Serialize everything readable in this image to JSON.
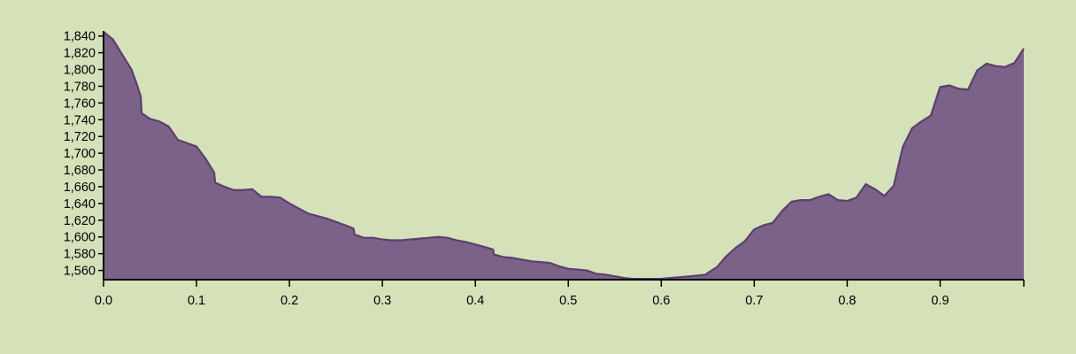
{
  "chart_data": {
    "type": "area",
    "title": "",
    "xlabel": "",
    "ylabel": "",
    "xlim": [
      0,
      0.99
    ],
    "ylim": [
      1549,
      1846
    ],
    "grid": false,
    "x_ticks": [
      "0.0",
      "0.1",
      "0.2",
      "0.3",
      "0.4",
      "0.5",
      "0.6",
      "0.7",
      "0.8",
      "0.9"
    ],
    "y_ticks": [
      "1,560",
      "1,580",
      "1,600",
      "1,620",
      "1,640",
      "1,660",
      "1,680",
      "1,700",
      "1,720",
      "1,740",
      "1,760",
      "1,780",
      "1,800",
      "1,820",
      "1,840"
    ],
    "series": [
      {
        "fill": "#7b6288",
        "stroke": "#5d3f6e",
        "x": [
          0.0,
          0.01,
          0.02,
          0.03,
          0.035,
          0.04,
          0.041,
          0.05,
          0.06,
          0.07,
          0.08,
          0.09,
          0.1,
          0.11,
          0.119,
          0.12,
          0.13,
          0.14,
          0.15,
          0.16,
          0.17,
          0.18,
          0.19,
          0.2,
          0.21,
          0.22,
          0.23,
          0.24,
          0.25,
          0.26,
          0.269,
          0.27,
          0.28,
          0.29,
          0.3,
          0.31,
          0.32,
          0.33,
          0.34,
          0.35,
          0.36,
          0.37,
          0.38,
          0.39,
          0.4,
          0.41,
          0.419,
          0.42,
          0.43,
          0.44,
          0.45,
          0.46,
          0.47,
          0.48,
          0.49,
          0.5,
          0.51,
          0.52,
          0.53,
          0.54,
          0.55,
          0.56,
          0.57,
          0.58,
          0.59,
          0.6,
          0.61,
          0.62,
          0.63,
          0.64,
          0.648,
          0.65,
          0.66,
          0.67,
          0.68,
          0.69,
          0.7,
          0.71,
          0.72,
          0.73,
          0.74,
          0.75,
          0.76,
          0.77,
          0.78,
          0.79,
          0.8,
          0.81,
          0.82,
          0.83,
          0.84,
          0.85,
          0.86,
          0.87,
          0.88,
          0.89,
          0.9,
          0.91,
          0.92,
          0.93,
          0.94,
          0.95,
          0.96,
          0.97,
          0.98,
          0.99
        ],
        "values": [
          1845,
          1836,
          1818,
          1800,
          1785,
          1768,
          1748,
          1741,
          1738,
          1732,
          1716,
          1712,
          1708,
          1693,
          1677,
          1665,
          1660,
          1656,
          1656,
          1657,
          1648,
          1648,
          1647,
          1640,
          1634,
          1628,
          1625,
          1622,
          1618,
          1614,
          1610,
          1603,
          1599,
          1599,
          1597,
          1596,
          1596,
          1597,
          1598,
          1599,
          1600,
          1599,
          1596,
          1594,
          1591,
          1588,
          1585,
          1579,
          1576,
          1575,
          1573,
          1571,
          1570,
          1569,
          1565,
          1562,
          1561,
          1560,
          1556,
          1555,
          1553,
          1551,
          1550,
          1550,
          1550,
          1550,
          1551,
          1552,
          1553,
          1554,
          1555,
          1557,
          1564,
          1577,
          1587,
          1595,
          1609,
          1614,
          1617,
          1631,
          1642,
          1644,
          1644,
          1648,
          1651,
          1644,
          1643,
          1647,
          1663,
          1657,
          1649,
          1661,
          1708,
          1730,
          1738,
          1745,
          1779,
          1781,
          1777,
          1776,
          1799,
          1807,
          1804,
          1803,
          1808,
          1825
        ]
      }
    ]
  }
}
